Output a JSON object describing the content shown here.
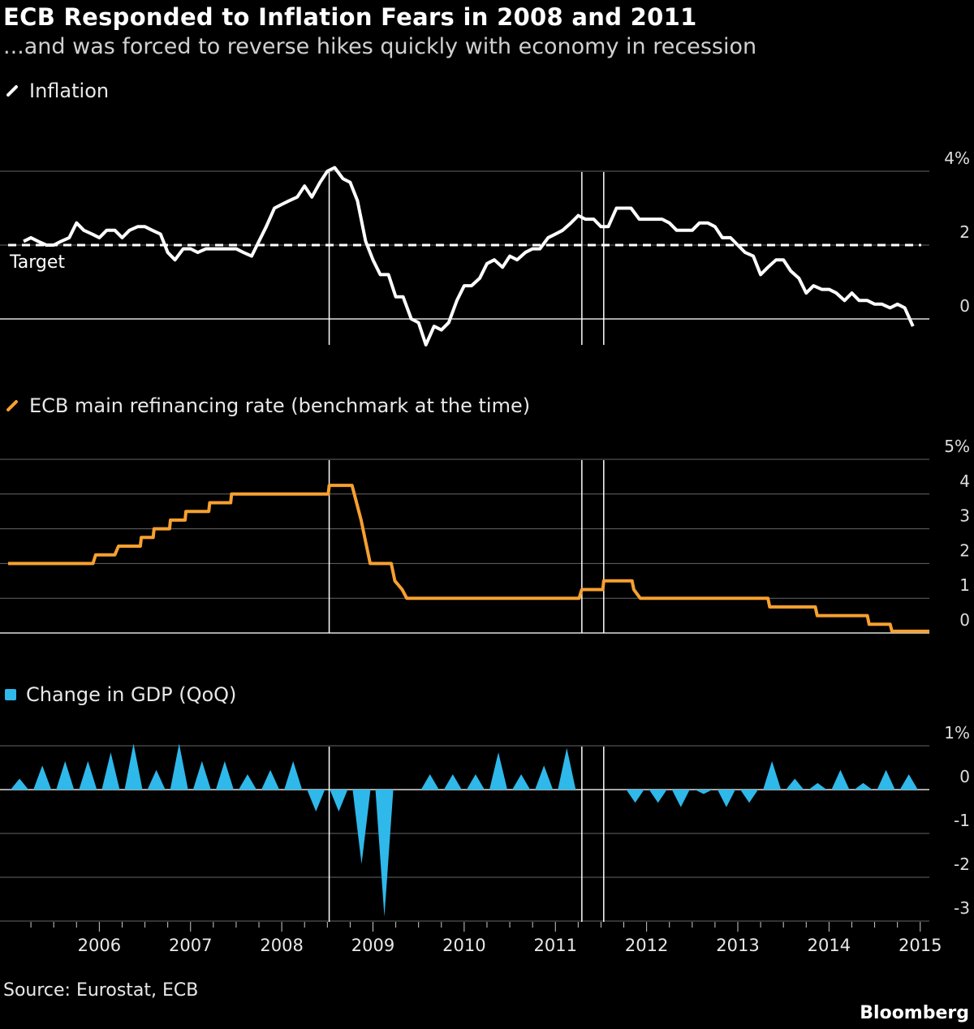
{
  "header": {
    "title": "ECB Responded to Inflation Fears in 2008 and 2011",
    "subtitle": "...and was forced to reverse hikes quickly with economy in recession"
  },
  "footer": {
    "source": "Source: Eurostat, ECB",
    "brand": "Bloomberg"
  },
  "colors": {
    "inflation": "#ffffff",
    "rate": "#f7a030",
    "gdp": "#2fb8ea",
    "grid": "#666666",
    "background": "#000000"
  },
  "chart_data": [
    {
      "type": "line",
      "legend": "Inflation",
      "unit": "%",
      "ylim": [
        -0.7,
        4.3
      ],
      "y_ticks": [
        {
          "v": 4,
          "label": "4%"
        },
        {
          "v": 2,
          "label": "2"
        },
        {
          "v": 0,
          "label": "0"
        }
      ],
      "target": {
        "value": 2,
        "label": "Target"
      },
      "series": [
        {
          "points": [
            [
              2005.17,
              2.1
            ],
            [
              2005.25,
              2.2
            ],
            [
              2005.33,
              2.1
            ],
            [
              2005.42,
              2.0
            ],
            [
              2005.5,
              2.0
            ],
            [
              2005.58,
              2.1
            ],
            [
              2005.67,
              2.2
            ],
            [
              2005.75,
              2.6
            ],
            [
              2005.83,
              2.4
            ],
            [
              2005.92,
              2.3
            ],
            [
              2006.0,
              2.2
            ],
            [
              2006.08,
              2.4
            ],
            [
              2006.17,
              2.4
            ],
            [
              2006.25,
              2.2
            ],
            [
              2006.33,
              2.4
            ],
            [
              2006.42,
              2.5
            ],
            [
              2006.5,
              2.5
            ],
            [
              2006.58,
              2.4
            ],
            [
              2006.67,
              2.3
            ],
            [
              2006.75,
              1.8
            ],
            [
              2006.83,
              1.6
            ],
            [
              2006.92,
              1.9
            ],
            [
              2007.0,
              1.9
            ],
            [
              2007.08,
              1.8
            ],
            [
              2007.17,
              1.9
            ],
            [
              2007.25,
              1.9
            ],
            [
              2007.33,
              1.9
            ],
            [
              2007.42,
              1.9
            ],
            [
              2007.5,
              1.9
            ],
            [
              2007.58,
              1.8
            ],
            [
              2007.67,
              1.7
            ],
            [
              2007.75,
              2.1
            ],
            [
              2007.83,
              2.5
            ],
            [
              2007.92,
              3.0
            ],
            [
              2008.0,
              3.1
            ],
            [
              2008.08,
              3.2
            ],
            [
              2008.17,
              3.3
            ],
            [
              2008.25,
              3.6
            ],
            [
              2008.33,
              3.3
            ],
            [
              2008.42,
              3.7
            ],
            [
              2008.5,
              4.0
            ],
            [
              2008.58,
              4.1
            ],
            [
              2008.67,
              3.8
            ],
            [
              2008.75,
              3.7
            ],
            [
              2008.83,
              3.2
            ],
            [
              2008.92,
              2.1
            ],
            [
              2009.0,
              1.6
            ],
            [
              2009.08,
              1.2
            ],
            [
              2009.17,
              1.2
            ],
            [
              2009.25,
              0.6
            ],
            [
              2009.33,
              0.6
            ],
            [
              2009.42,
              0.0
            ],
            [
              2009.5,
              -0.1
            ],
            [
              2009.58,
              -0.7
            ],
            [
              2009.67,
              -0.2
            ],
            [
              2009.75,
              -0.3
            ],
            [
              2009.83,
              -0.1
            ],
            [
              2009.92,
              0.5
            ],
            [
              2010.0,
              0.9
            ],
            [
              2010.08,
              0.9
            ],
            [
              2010.17,
              1.1
            ],
            [
              2010.25,
              1.5
            ],
            [
              2010.33,
              1.6
            ],
            [
              2010.42,
              1.4
            ],
            [
              2010.5,
              1.7
            ],
            [
              2010.58,
              1.6
            ],
            [
              2010.67,
              1.8
            ],
            [
              2010.75,
              1.9
            ],
            [
              2010.83,
              1.9
            ],
            [
              2010.92,
              2.2
            ],
            [
              2011.0,
              2.3
            ],
            [
              2011.08,
              2.4
            ],
            [
              2011.17,
              2.6
            ],
            [
              2011.25,
              2.8
            ],
            [
              2011.33,
              2.7
            ],
            [
              2011.42,
              2.7
            ],
            [
              2011.5,
              2.5
            ],
            [
              2011.58,
              2.5
            ],
            [
              2011.67,
              3.0
            ],
            [
              2011.75,
              3.0
            ],
            [
              2011.83,
              3.0
            ],
            [
              2011.92,
              2.7
            ],
            [
              2012.0,
              2.7
            ],
            [
              2012.08,
              2.7
            ],
            [
              2012.17,
              2.7
            ],
            [
              2012.25,
              2.6
            ],
            [
              2012.33,
              2.4
            ],
            [
              2012.42,
              2.4
            ],
            [
              2012.5,
              2.4
            ],
            [
              2012.58,
              2.6
            ],
            [
              2012.67,
              2.6
            ],
            [
              2012.75,
              2.5
            ],
            [
              2012.83,
              2.2
            ],
            [
              2012.92,
              2.2
            ],
            [
              2013.0,
              2.0
            ],
            [
              2013.08,
              1.8
            ],
            [
              2013.17,
              1.7
            ],
            [
              2013.25,
              1.2
            ],
            [
              2013.33,
              1.4
            ],
            [
              2013.42,
              1.6
            ],
            [
              2013.5,
              1.6
            ],
            [
              2013.58,
              1.3
            ],
            [
              2013.67,
              1.1
            ],
            [
              2013.75,
              0.7
            ],
            [
              2013.83,
              0.9
            ],
            [
              2013.92,
              0.8
            ],
            [
              2014.0,
              0.8
            ],
            [
              2014.08,
              0.7
            ],
            [
              2014.17,
              0.5
            ],
            [
              2014.25,
              0.7
            ],
            [
              2014.33,
              0.5
            ],
            [
              2014.42,
              0.5
            ],
            [
              2014.5,
              0.4
            ],
            [
              2014.58,
              0.4
            ],
            [
              2014.67,
              0.3
            ],
            [
              2014.75,
              0.4
            ],
            [
              2014.83,
              0.3
            ],
            [
              2014.92,
              -0.2
            ]
          ]
        }
      ]
    },
    {
      "type": "line",
      "legend": "ECB main refinancing rate (benchmark at the time)",
      "unit": "%",
      "ylim": [
        0,
        5
      ],
      "y_ticks": [
        {
          "v": 5,
          "label": "5%"
        },
        {
          "v": 4,
          "label": "4"
        },
        {
          "v": 3,
          "label": "3"
        },
        {
          "v": 2,
          "label": "2"
        },
        {
          "v": 1,
          "label": "1"
        },
        {
          "v": 0,
          "label": "0"
        }
      ],
      "series": [
        {
          "points": [
            [
              2005.0,
              2.0
            ],
            [
              2005.93,
              2.0
            ],
            [
              2005.96,
              2.25
            ],
            [
              2006.17,
              2.25
            ],
            [
              2006.21,
              2.5
            ],
            [
              2006.45,
              2.5
            ],
            [
              2006.46,
              2.75
            ],
            [
              2006.59,
              2.75
            ],
            [
              2006.6,
              3.0
            ],
            [
              2006.77,
              3.0
            ],
            [
              2006.78,
              3.25
            ],
            [
              2006.94,
              3.25
            ],
            [
              2006.95,
              3.5
            ],
            [
              2007.2,
              3.5
            ],
            [
              2007.21,
              3.75
            ],
            [
              2007.44,
              3.75
            ],
            [
              2007.45,
              4.0
            ],
            [
              2008.51,
              4.0
            ],
            [
              2008.52,
              4.25
            ],
            [
              2008.77,
              4.25
            ],
            [
              2008.82,
              3.75
            ],
            [
              2008.87,
              3.25
            ],
            [
              2008.93,
              2.5
            ],
            [
              2008.97,
              2.0
            ],
            [
              2009.2,
              2.0
            ],
            [
              2009.24,
              1.5
            ],
            [
              2009.32,
              1.25
            ],
            [
              2009.37,
              1.0
            ],
            [
              2011.26,
              1.0
            ],
            [
              2011.29,
              1.25
            ],
            [
              2011.52,
              1.25
            ],
            [
              2011.53,
              1.5
            ],
            [
              2011.84,
              1.5
            ],
            [
              2011.86,
              1.25
            ],
            [
              2011.93,
              1.0
            ],
            [
              2013.33,
              1.0
            ],
            [
              2013.35,
              0.75
            ],
            [
              2013.85,
              0.75
            ],
            [
              2013.87,
              0.5
            ],
            [
              2014.42,
              0.5
            ],
            [
              2014.44,
              0.25
            ],
            [
              2014.67,
              0.25
            ],
            [
              2014.69,
              0.05
            ],
            [
              2015.1,
              0.05
            ]
          ]
        }
      ]
    },
    {
      "type": "bar",
      "legend": "Change in GDP (QoQ)",
      "unit": "%",
      "ylim": [
        -3,
        1
      ],
      "y_ticks": [
        {
          "v": 1,
          "label": "1%"
        },
        {
          "v": 0,
          "label": "0"
        },
        {
          "v": -1,
          "label": "-1"
        },
        {
          "v": -2,
          "label": "-2"
        },
        {
          "v": -3,
          "label": "-3"
        }
      ],
      "series": [
        {
          "points": [
            [
              2005.125,
              0.25
            ],
            [
              2005.375,
              0.55
            ],
            [
              2005.625,
              0.65
            ],
            [
              2005.875,
              0.65
            ],
            [
              2006.125,
              0.85
            ],
            [
              2006.375,
              1.05
            ],
            [
              2006.625,
              0.45
            ],
            [
              2006.875,
              1.05
            ],
            [
              2007.125,
              0.65
            ],
            [
              2007.375,
              0.65
            ],
            [
              2007.625,
              0.35
            ],
            [
              2007.875,
              0.45
            ],
            [
              2008.125,
              0.65
            ],
            [
              2008.375,
              -0.5
            ],
            [
              2008.625,
              -0.5
            ],
            [
              2008.875,
              -1.7
            ],
            [
              2009.125,
              -2.9
            ],
            [
              2009.375,
              0.0
            ],
            [
              2009.625,
              0.35
            ],
            [
              2009.875,
              0.35
            ],
            [
              2010.125,
              0.35
            ],
            [
              2010.375,
              0.85
            ],
            [
              2010.625,
              0.35
            ],
            [
              2010.875,
              0.55
            ],
            [
              2011.125,
              0.95
            ],
            [
              2011.375,
              0.0
            ],
            [
              2011.625,
              0.0
            ],
            [
              2011.875,
              -0.3
            ],
            [
              2012.125,
              -0.3
            ],
            [
              2012.375,
              -0.4
            ],
            [
              2012.625,
              -0.1
            ],
            [
              2012.875,
              -0.4
            ],
            [
              2013.125,
              -0.3
            ],
            [
              2013.375,
              0.65
            ],
            [
              2013.625,
              0.25
            ],
            [
              2013.875,
              0.15
            ],
            [
              2014.125,
              0.45
            ],
            [
              2014.375,
              0.15
            ],
            [
              2014.625,
              0.45
            ],
            [
              2014.875,
              0.35
            ]
          ]
        }
      ]
    }
  ],
  "x_axis": {
    "years": [
      "2006",
      "2007",
      "2008",
      "2009",
      "2010",
      "2011",
      "2012",
      "2013",
      "2014",
      "2015"
    ],
    "range": [
      2005.0,
      2015.1
    ]
  },
  "markers": [
    2008.52,
    2011.29,
    2011.53
  ]
}
